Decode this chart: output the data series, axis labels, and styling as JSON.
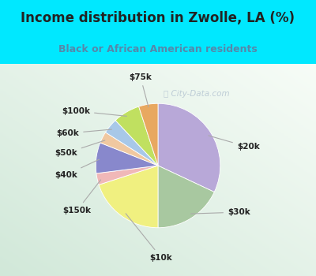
{
  "title": "Income distribution in Zwolle, LA (%)",
  "subtitle": "Black or African American residents",
  "watermark": "ⓘ City-Data.com",
  "slices": [
    {
      "label": "$20k",
      "value": 32,
      "color": "#b8a8d8"
    },
    {
      "label": "$30k",
      "value": 18,
      "color": "#a8c8a0"
    },
    {
      "label": "$10k",
      "value": 20,
      "color": "#f0f080"
    },
    {
      "label": "$150k",
      "value": 3,
      "color": "#f0b8b8"
    },
    {
      "label": "$40k",
      "value": 8,
      "color": "#8888cc"
    },
    {
      "label": "$50k",
      "value": 3,
      "color": "#f0c8a0"
    },
    {
      "label": "$60k",
      "value": 4,
      "color": "#a8c8e8"
    },
    {
      "label": "$100k",
      "value": 7,
      "color": "#c0e060"
    },
    {
      "label": "$75k",
      "value": 5,
      "color": "#e8a860"
    }
  ],
  "bg_cyan": "#00e8ff",
  "bg_chart_tl": "#e8f8f0",
  "bg_chart_br": "#c8e8d8",
  "title_color": "#222222",
  "subtitle_color": "#5588aa",
  "label_color": "#222222",
  "startangle": 90,
  "figsize": [
    4.0,
    3.5
  ],
  "dpi": 100
}
